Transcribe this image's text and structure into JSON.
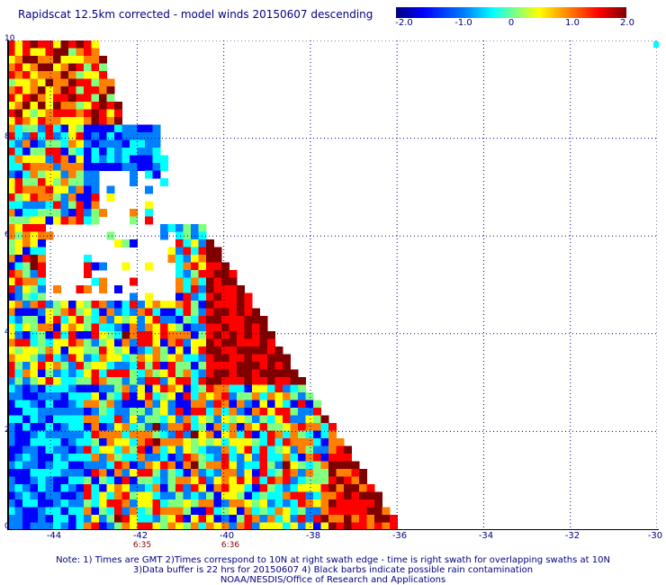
{
  "title": "Rapidscat 12.5km corrected - model winds 20150607 descending",
  "colorbar": {
    "ticks": [
      {
        "label": "-2.0",
        "value": -2.0
      },
      {
        "label": "-1.0",
        "value": -1.0
      },
      {
        "label": "0",
        "value": 0
      },
      {
        "label": "1.0",
        "value": 1.0
      },
      {
        "label": "2.0",
        "value": 2.0
      }
    ],
    "colors": [
      "#00007f",
      "#0000ff",
      "#0080ff",
      "#00ffff",
      "#80ff80",
      "#ffff00",
      "#ff8000",
      "#ff0000",
      "#800000"
    ]
  },
  "map": {
    "y_ticks": [
      "10",
      "8",
      "6",
      "4",
      "2",
      "0"
    ],
    "x_ticks": [
      "-44",
      "-42",
      "-40",
      "-38",
      "-36",
      "-34",
      "-32",
      "-30"
    ],
    "lon_range": [
      -45,
      -30
    ],
    "lat_range": [
      0,
      10
    ],
    "swath_times": [
      {
        "time": "6:35",
        "lon": -42
      },
      {
        "time": "6:36",
        "lon": -40
      }
    ]
  },
  "notes": {
    "line1": "Note: 1) Times are GMT 2)Times correspond to 10N at right swath edge - time is right swath for overlapping swaths at 10N",
    "line2": "3)Data buffer is 22 hrs for 20150607 4) Black barbs indicate possible rain contamination",
    "line3": "NOAA/NESDIS/Office of Research and Applications"
  }
}
